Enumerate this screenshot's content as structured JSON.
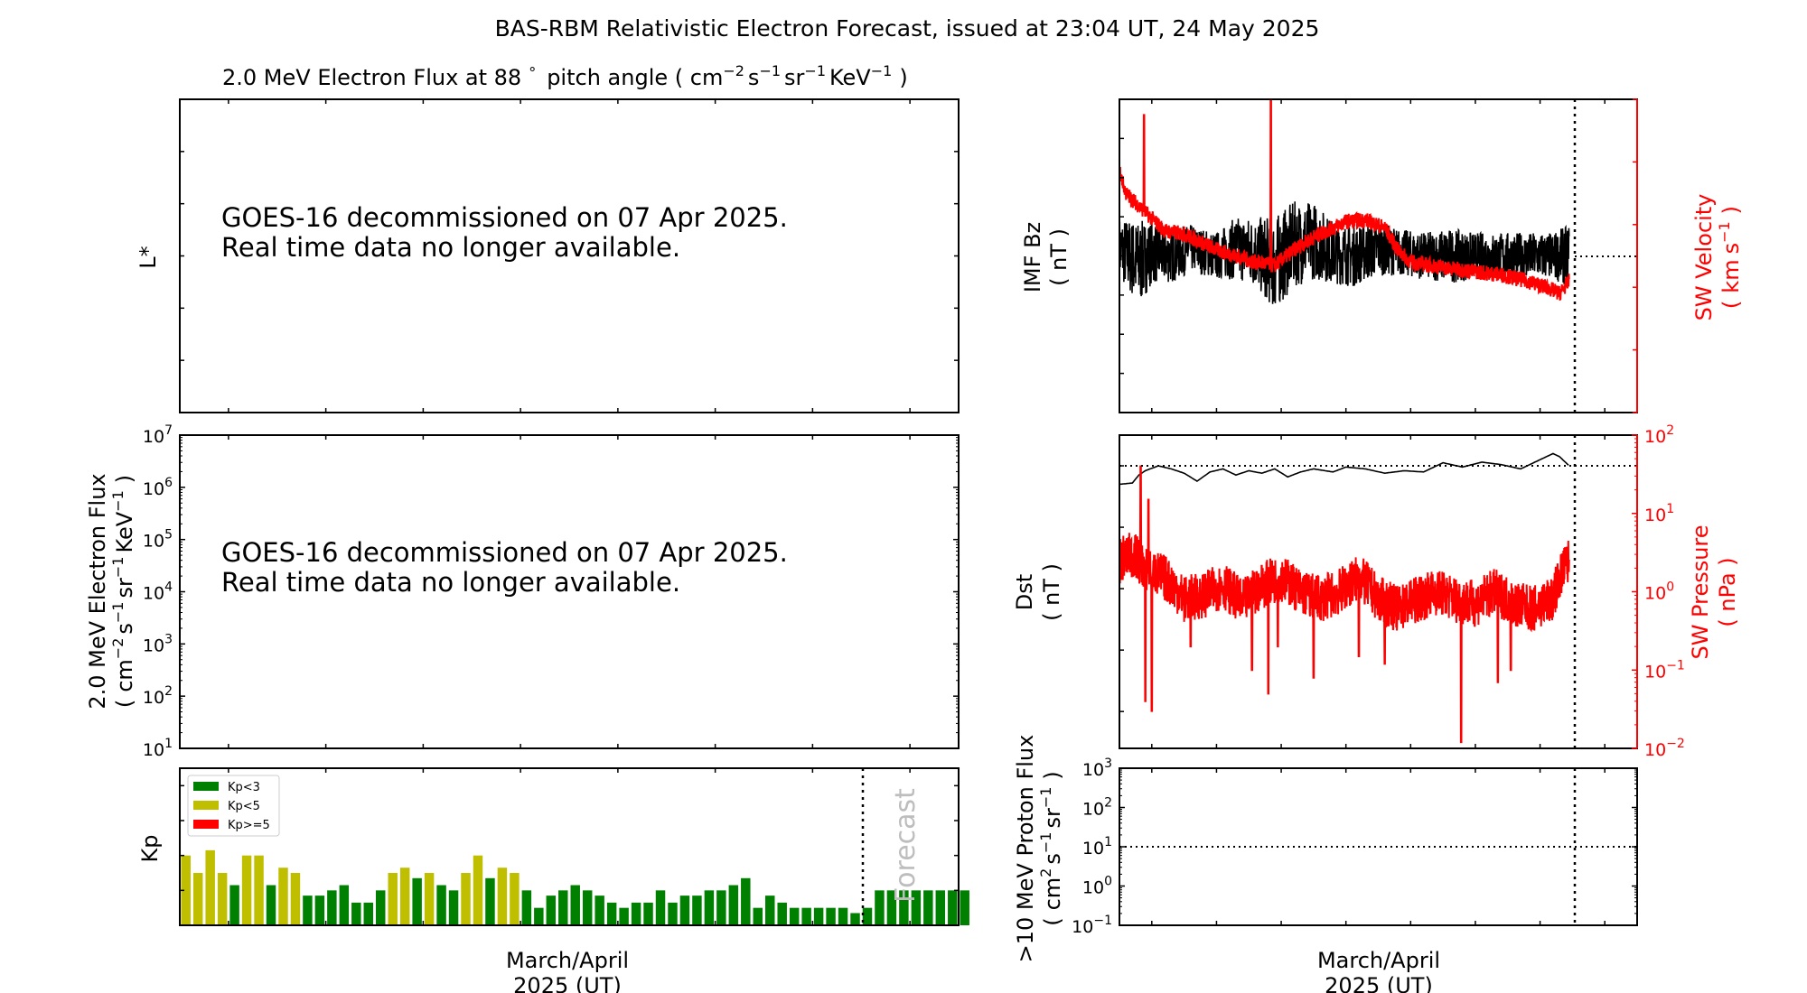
{
  "figure": {
    "title": "BAS-RBM Relativistic Electron Forecast, issued at 23:04 UT, 24 May 2025",
    "panel_title": "2.0 MeV Electron Flux at 88",
    "panel_title_deg": "°",
    "panel_title_units_open": "pitch angle ( cm",
    "panel_title_units_close": ")",
    "notice_line1": "GOES-16 decommissioned on 07 Apr 2025.",
    "notice_line2": "Real time data no longer available.",
    "forecast_label": "Forecast",
    "xlabel_line1": "March/April",
    "xlabel_line2": "2025 (UT)"
  },
  "units": {
    "nT": "( nT )",
    "nPa": "( nPa )",
    "cm": "cm",
    "s": "s",
    "sr": "sr",
    "kev": "KeV",
    "km": "km",
    "m1": "−1",
    "m2": "−2",
    "two": "2",
    "paren_open": "(",
    "paren_close": ")"
  },
  "axes": {
    "lstar_label": "L*",
    "flux_label": "2.0 MeV Electron Flux",
    "kp_label": "Kp",
    "bz_label": "IMF Bz",
    "vel_label": "SW Velocity",
    "dst_label": "Dst",
    "pres_label": "SW Pressure",
    "proton_label": ">10 MeV Proton Flux"
  },
  "colors": {
    "kp_low": "#008000",
    "kp_mid": "#bfbf00",
    "kp_high": "#ff0000",
    "bz": "#000000",
    "velocity": "#ff0000",
    "dst": "#000000",
    "pressure": "#ff0000"
  },
  "chart_data": [
    {
      "type": "line",
      "name": "lstar",
      "ylabel": "L*",
      "ylim": [
        2,
        8
      ],
      "yticks": [
        "2",
        "3",
        "4",
        "5",
        "6",
        "7",
        "8"
      ],
      "series": []
    },
    {
      "type": "line",
      "name": "electron_flux",
      "ylabel": "2.0 MeV Electron Flux ( cm−2 s−1 sr−1 KeV−1 )",
      "yscale": "log",
      "ylim_exponents": [
        1,
        7
      ],
      "ytick_base": "10",
      "ytick_exponents": [
        "1",
        "2",
        "3",
        "4",
        "5",
        "6",
        "7"
      ],
      "series": []
    },
    {
      "type": "bar",
      "name": "kp",
      "ylabel": "Kp",
      "xlabel": "March/April 2025 (UT)",
      "xlim": [
        17.5,
        25.5
      ],
      "xticks": [
        "18",
        "19",
        "20",
        "21",
        "22",
        "23",
        "24",
        "25"
      ],
      "ylim": [
        0,
        9
      ],
      "yticks": [
        "0",
        "2",
        "4",
        "6",
        "8"
      ],
      "forecast_start": 24.5,
      "legend": {
        "position": "upper-left",
        "entries": [
          "Kp<3",
          "Kp<5",
          "Kp>=5"
        ]
      },
      "values": [
        4.0,
        3.0,
        4.3,
        3.0,
        2.3,
        4.0,
        4.0,
        2.3,
        3.3,
        3.0,
        1.7,
        1.7,
        2.0,
        2.3,
        1.3,
        1.3,
        2.0,
        3.0,
        3.3,
        2.7,
        3.0,
        2.3,
        2.0,
        3.0,
        4.0,
        2.7,
        3.3,
        3.0,
        2.0,
        1.0,
        1.7,
        2.0,
        2.3,
        2.0,
        1.7,
        1.3,
        1.0,
        1.3,
        1.3,
        2.0,
        1.3,
        1.7,
        1.7,
        2.0,
        2.0,
        2.3,
        2.7,
        1.0,
        1.7,
        1.3,
        1.0,
        1.0,
        1.0,
        1.0,
        1.0,
        0.7,
        1.0,
        2.0,
        2.0,
        2.0,
        2.0,
        2.0,
        2.0,
        2.0,
        2.0
      ]
    },
    {
      "type": "line",
      "name": "imf_bz_and_sw_velocity",
      "xlim": [
        17.5,
        25.5
      ],
      "xticks": [
        "18",
        "19",
        "20",
        "21",
        "22",
        "23",
        "24",
        "25"
      ],
      "now": 24.45,
      "left_axis": {
        "label": "IMF Bz ( nT )",
        "ylim": [
          -20,
          20
        ],
        "yticks": [
          "−20",
          "−15",
          "−10",
          "−5",
          "0",
          "5",
          "10",
          "15",
          "20"
        ]
      },
      "right_axis": {
        "label": "SW Velocity ( km s−1 )",
        "ylim": [
          0,
          1000
        ],
        "yticks": [
          "0",
          "200",
          "400",
          "600",
          "800",
          "1000"
        ]
      },
      "series": [
        {
          "name": "IMF Bz",
          "axis": "left",
          "x": [
            17.5,
            17.8,
            18.0,
            18.3,
            18.6,
            19.0,
            19.3,
            19.6,
            19.9,
            20.2,
            20.5,
            20.8,
            21.1,
            21.5,
            21.8,
            22.2,
            22.6,
            23.0,
            23.4,
            23.8,
            24.2,
            24.45
          ],
          "mean": [
            1.0,
            -1.0,
            0.5,
            0.0,
            1.0,
            0.0,
            1.0,
            0.5,
            -1.0,
            1.5,
            2.0,
            0.5,
            0.0,
            1.0,
            0.5,
            0.0,
            0.0,
            0.0,
            0.0,
            0.0,
            0.0,
            0.0
          ],
          "spread": [
            4.0,
            5.5,
            4.0,
            3.5,
            3.0,
            3.0,
            4.0,
            4.5,
            6.0,
            5.5,
            5.0,
            4.0,
            4.0,
            3.5,
            3.0,
            3.0,
            3.5,
            3.0,
            3.0,
            3.0,
            3.0,
            4.0
          ]
        },
        {
          "name": "SW Velocity",
          "axis": "right",
          "x": [
            17.5,
            17.6,
            17.7,
            17.85,
            18.0,
            18.2,
            18.5,
            18.8,
            19.0,
            19.3,
            19.6,
            19.9,
            20.2,
            20.5,
            20.8,
            21.0,
            21.3,
            21.6,
            21.8,
            22.0,
            22.3,
            22.6,
            23.0,
            23.4,
            23.8,
            24.1,
            24.3,
            24.45
          ],
          "values": [
            770,
            700,
            680,
            650,
            620,
            580,
            570,
            540,
            520,
            500,
            480,
            470,
            520,
            560,
            590,
            610,
            615,
            590,
            520,
            480,
            470,
            460,
            450,
            440,
            420,
            400,
            380,
            420
          ],
          "spikes": [
            [
              17.88,
              950
            ],
            [
              19.84,
              1000
            ]
          ]
        }
      ]
    },
    {
      "type": "line",
      "name": "dst_and_sw_pressure",
      "xlim": [
        17.5,
        25.5
      ],
      "xticks": [
        "18",
        "19",
        "20",
        "21",
        "22",
        "23",
        "24",
        "25"
      ],
      "now": 24.45,
      "left_axis": {
        "label": "Dst ( nT )",
        "ylim": [
          -460,
          50
        ],
        "yticks": [
          "−400",
          "−300",
          "−200",
          "−100",
          "0"
        ]
      },
      "right_axis": {
        "label": "SW Pressure ( nPa )",
        "yscale": "log",
        "ylim_exponents": [
          -2,
          2
        ],
        "ytick_base": "10",
        "ytick_exponents": [
          "−2",
          "−1",
          "0",
          "1",
          "2"
        ]
      },
      "series": [
        {
          "name": "Dst",
          "axis": "left",
          "x": [
            17.5,
            17.7,
            17.8,
            17.9,
            18.1,
            18.3,
            18.5,
            18.7,
            18.9,
            19.1,
            19.3,
            19.5,
            19.7,
            19.9,
            20.1,
            20.3,
            20.5,
            20.8,
            21.0,
            21.3,
            21.6,
            21.9,
            22.2,
            22.5,
            22.8,
            23.1,
            23.4,
            23.7,
            24.0,
            24.2,
            24.3,
            24.45
          ],
          "values": [
            -30,
            -28,
            -15,
            -8,
            0,
            -5,
            -12,
            -25,
            -10,
            -5,
            -15,
            -8,
            -12,
            -5,
            -18,
            -10,
            -5,
            -10,
            -2,
            -5,
            -12,
            -8,
            -10,
            5,
            -2,
            6,
            2,
            -5,
            10,
            20,
            15,
            0
          ]
        },
        {
          "name": "SW Pressure",
          "axis": "right",
          "x": [
            17.5,
            17.7,
            17.9,
            18.2,
            18.5,
            18.8,
            19.1,
            19.4,
            19.7,
            20.0,
            20.3,
            20.6,
            20.9,
            21.2,
            21.5,
            21.8,
            22.1,
            22.4,
            22.7,
            23.0,
            23.3,
            23.6,
            23.9,
            24.2,
            24.45
          ],
          "values": [
            2.5,
            3.0,
            2.0,
            1.5,
            0.8,
            0.9,
            1.2,
            0.7,
            1.2,
            1.5,
            1.0,
            0.8,
            1.0,
            1.5,
            0.8,
            0.6,
            0.8,
            1.0,
            0.8,
            0.7,
            1.0,
            0.7,
            0.6,
            0.8,
            2.5
          ],
          "spikes": [
            [
              17.83,
              40
            ],
            [
              17.9,
              0.04
            ],
            [
              17.95,
              15
            ],
            [
              18.0,
              0.03
            ],
            [
              19.55,
              0.1
            ],
            [
              19.8,
              0.05
            ],
            [
              19.95,
              0.2
            ],
            [
              21.2,
              0.15
            ],
            [
              20.5,
              0.08
            ],
            [
              22.78,
              0.012
            ],
            [
              23.35,
              0.07
            ],
            [
              23.55,
              0.1
            ],
            [
              18.6,
              0.2
            ],
            [
              21.6,
              0.12
            ]
          ]
        }
      ]
    },
    {
      "type": "line",
      "name": "proton_flux",
      "ylabel": ">10 MeV Proton Flux ( cm2 s−1 sr−1 )",
      "yscale": "log",
      "xlim": [
        17.5,
        25.5
      ],
      "xticks": [
        "18",
        "19",
        "20",
        "21",
        "22",
        "23",
        "24",
        "25"
      ],
      "now": 24.45,
      "ylim_exponents": [
        -1,
        3
      ],
      "ytick_base": "10",
      "ytick_exponents": [
        "−1",
        "0",
        "1",
        "2",
        "3"
      ],
      "threshold": 10,
      "series": []
    }
  ]
}
